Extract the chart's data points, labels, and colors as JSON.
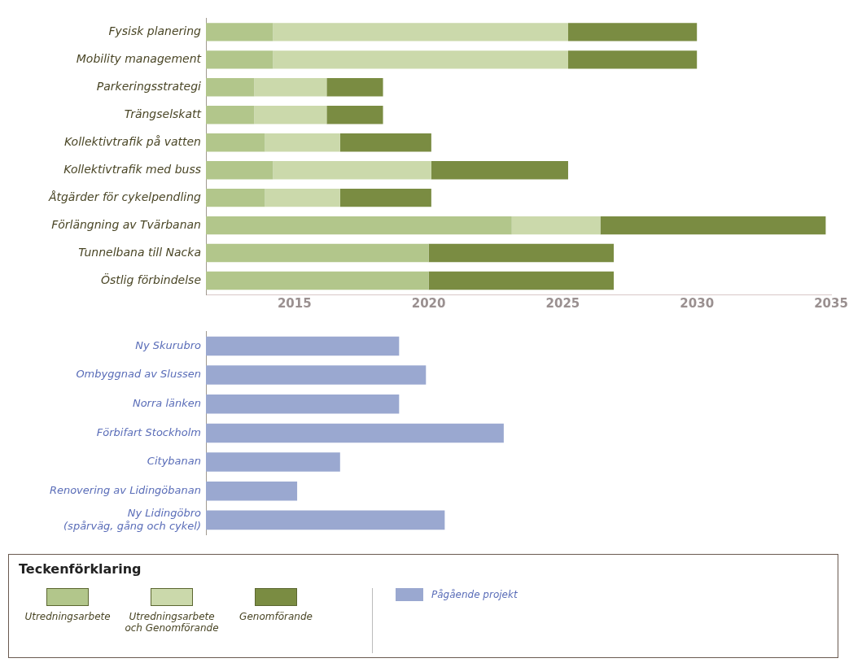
{
  "chart_data": [
    {
      "type": "bar",
      "orientation": "horizontal",
      "categories": [
        "Fysisk planering",
        "Mobility management",
        "Parkeringsstrategi",
        "Trängselskatt",
        "Kollektivtrafik på vatten",
        "Kollektivtrafik med buss",
        "Åtgärder för cykelpendling",
        "Förlängning av Tvärbanan",
        "Tunnelbana till Nacka",
        "Östlig förbindelse"
      ],
      "series": [
        {
          "name": "Utredningsarbete",
          "color": "#b2c68b",
          "base": [
            2011.7,
            2011.7,
            2011.7,
            2011.7,
            2011.7,
            2011.7,
            2011.7,
            2011.7,
            2011.7,
            2011.7
          ],
          "values": [
            2.5,
            2.5,
            1.8,
            1.8,
            2.2,
            2.5,
            2.2,
            11.4,
            8.3,
            8.3
          ]
        },
        {
          "name": "Utredningsarbete och Genomförande",
          "color": "#cbd9ab",
          "base": [
            2014.2,
            2014.2,
            2013.5,
            2013.5,
            2013.9,
            2014.2,
            2013.9,
            2023.1,
            null,
            null
          ],
          "values": [
            11,
            11,
            2.7,
            2.7,
            2.8,
            5.9,
            2.8,
            3.3,
            null,
            null
          ]
        },
        {
          "name": "Genomförande",
          "color": "#7a8c42",
          "base": [
            2025.2,
            2025.2,
            2016.2,
            2016.2,
            2016.7,
            2020.1,
            2016.7,
            2026.4,
            2020,
            2020
          ],
          "values": [
            4.8,
            4.8,
            2.1,
            2.1,
            3.4,
            5.1,
            3.4,
            8.4,
            6.9,
            6.9
          ]
        }
      ],
      "xlim": [
        2011.7,
        2035
      ],
      "xticks": [
        2015,
        2020,
        2025,
        2030,
        2035
      ],
      "grid": false,
      "legend": "bottom",
      "legend_title": "Teckenförklaring"
    },
    {
      "type": "bar",
      "orientation": "horizontal",
      "categories": [
        "Ny Skurubro",
        "Ombyggnad av Slussen",
        "Norra länken",
        "Förbifart Stockholm",
        "Citybanan",
        "Renovering av Lidingöbanan",
        "Ny Lidingöbro (spårväg, gång och cykel)"
      ],
      "series": [
        {
          "name": "Pågående projekt",
          "color": "#9aa8d0",
          "values": [
            2018.9,
            2019.9,
            2018.9,
            2022.8,
            2016.7,
            2015.1,
            2020.6
          ]
        }
      ],
      "xlim": [
        2011.7,
        2035
      ],
      "xticks": [
        2015,
        2020,
        2025,
        2030,
        2035
      ],
      "grid": false,
      "tick_labels": "y",
      "legend": "bottom"
    }
  ]
}
